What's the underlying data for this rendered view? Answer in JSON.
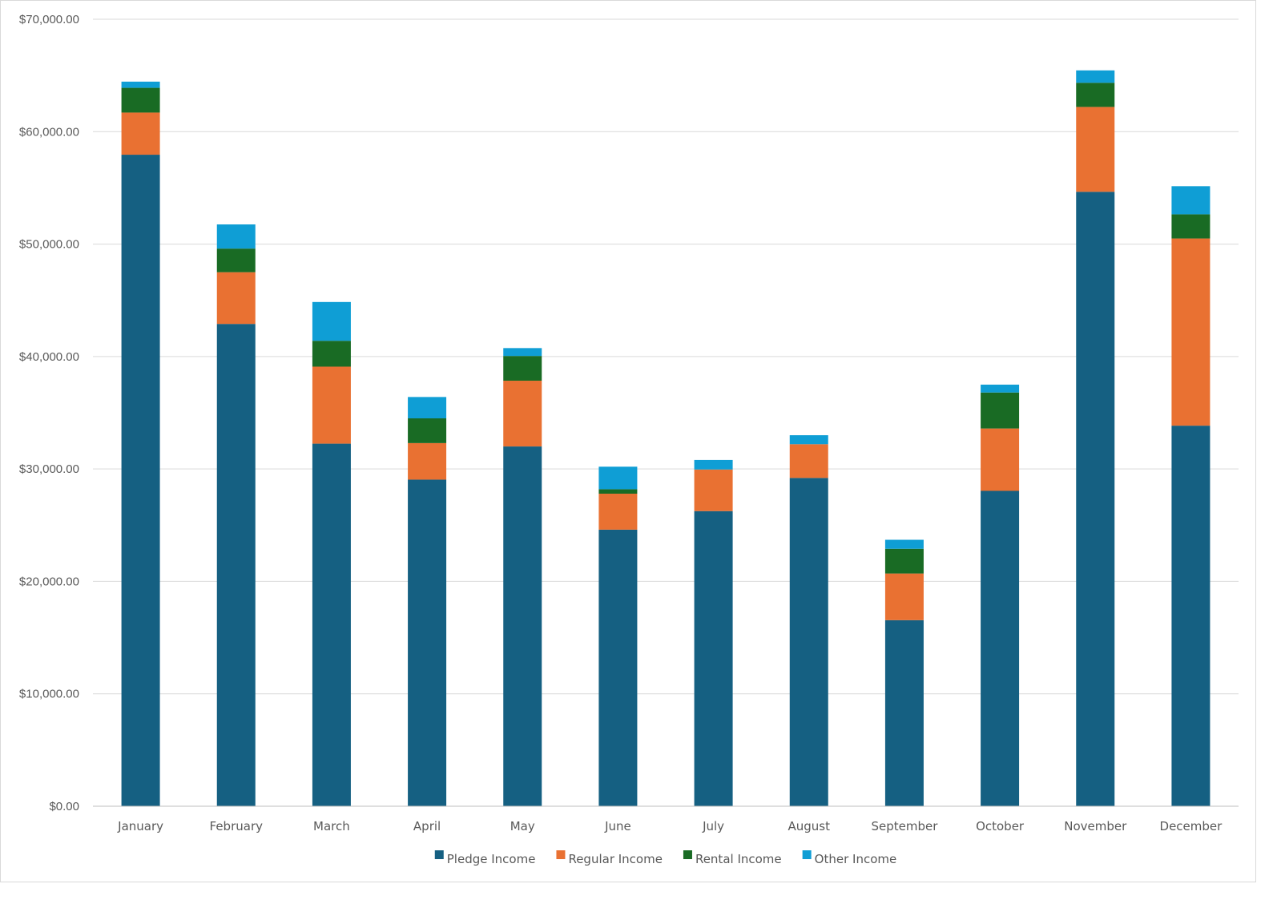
{
  "chart_data": {
    "type": "bar",
    "stacked": true,
    "title": "",
    "xlabel": "",
    "ylabel": "",
    "categories": [
      "January",
      "February",
      "March",
      "April",
      "May",
      "June",
      "July",
      "August",
      "September",
      "October",
      "November",
      "December"
    ],
    "ylim": [
      0,
      70000
    ],
    "yticks": [
      0,
      10000,
      20000,
      30000,
      40000,
      50000,
      60000,
      70000
    ],
    "ytick_labels": [
      "$0.00",
      "$10,000.00",
      "$20,000.00",
      "$30,000.00",
      "$40,000.00",
      "$50,000.00",
      "$60,000.00",
      "$70,000.00"
    ],
    "grid": true,
    "legend_position": "bottom",
    "series": [
      {
        "name": "Pledge Income",
        "color": "#156082",
        "values": [
          57950,
          42900,
          32250,
          29050,
          32000,
          24600,
          26250,
          29200,
          16550,
          28050,
          54650,
          33850
        ]
      },
      {
        "name": "Regular Income",
        "color": "#E97132",
        "values": [
          3750,
          4600,
          6850,
          3250,
          5850,
          3200,
          3700,
          3000,
          4150,
          5550,
          7550,
          16650
        ]
      },
      {
        "name": "Rental Income",
        "color": "#196B24",
        "values": [
          2200,
          2100,
          2300,
          2200,
          2200,
          400,
          0,
          0,
          2200,
          3200,
          2150,
          2150
        ]
      },
      {
        "name": "Other Income",
        "color": "#0F9ED5",
        "values": [
          550,
          2150,
          3450,
          1900,
          700,
          2000,
          850,
          800,
          800,
          700,
          1100,
          2500
        ]
      }
    ]
  }
}
